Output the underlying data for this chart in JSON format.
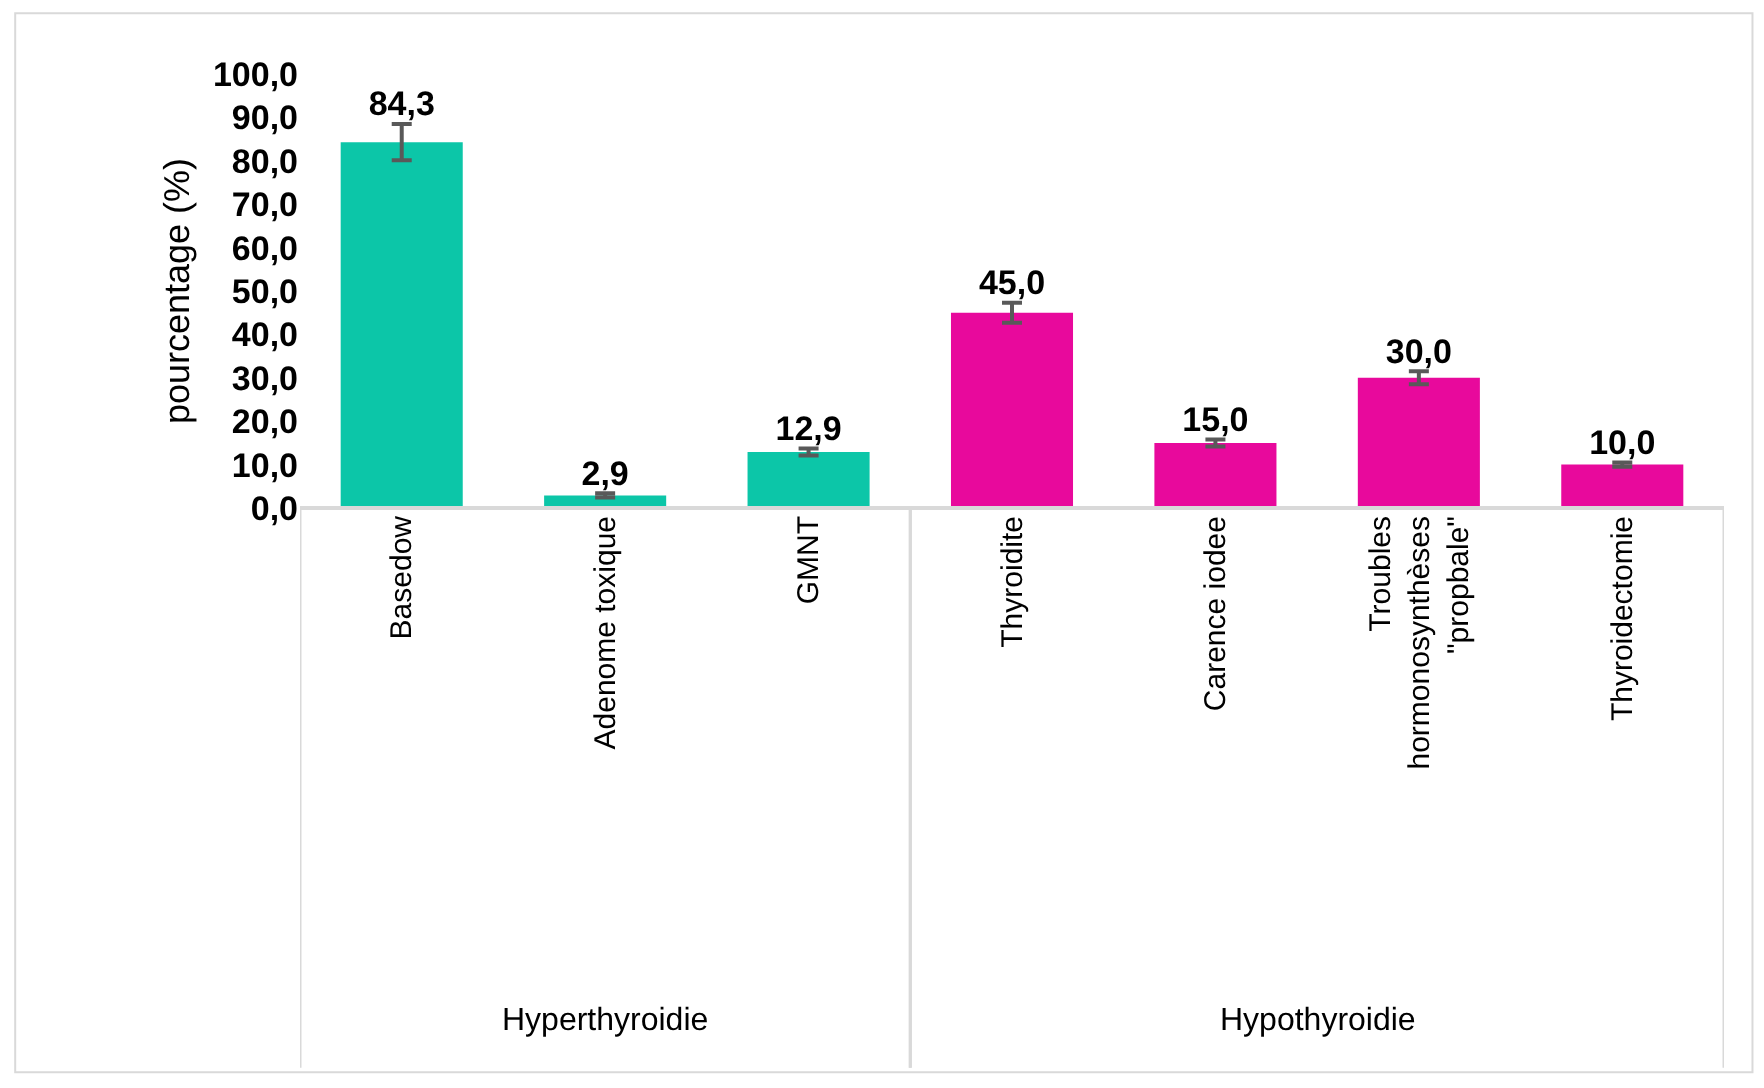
{
  "chart_data": {
    "type": "bar",
    "ylabel": "pourcentage (%)",
    "categories": [
      "Basedow",
      "Adenome toxique",
      "GMNT",
      "Thyroidite",
      "Carence iodee",
      "Troubles\nhormonosynthèses\n\"propbale\"",
      "Thyroidectomie"
    ],
    "values": [
      84.3,
      2.9,
      12.9,
      45.0,
      15.0,
      30.0,
      10.0
    ],
    "value_labels": [
      "84,3",
      "2,9",
      "12,9",
      "45,0",
      "15,0",
      "30,0",
      "10,0"
    ],
    "errors": [
      4.2,
      0.5,
      0.8,
      2.3,
      0.8,
      1.5,
      0.5
    ],
    "colors": [
      "#0cc6a8",
      "#0cc6a8",
      "#0cc6a8",
      "#e8099c",
      "#e8099c",
      "#e8099c",
      "#e8099c"
    ],
    "annotations": [
      "Hyperthyroidie",
      "Hypothyroidie"
    ],
    "ylim": [
      0,
      100
    ],
    "yticks": [
      {
        "value": 0,
        "label": "0,0"
      },
      {
        "value": 10,
        "label": "10,0"
      },
      {
        "value": 20,
        "label": "20,0"
      },
      {
        "value": 30,
        "label": "30,0"
      },
      {
        "value": 40,
        "label": "40,0"
      },
      {
        "value": 50,
        "label": "50,0"
      },
      {
        "value": 60,
        "label": "60,0"
      },
      {
        "value": 70,
        "label": "70,0"
      },
      {
        "value": 80,
        "label": "80,0"
      },
      {
        "value": 90,
        "label": "90,0"
      },
      {
        "value": 100,
        "label": "100,0"
      }
    ]
  }
}
